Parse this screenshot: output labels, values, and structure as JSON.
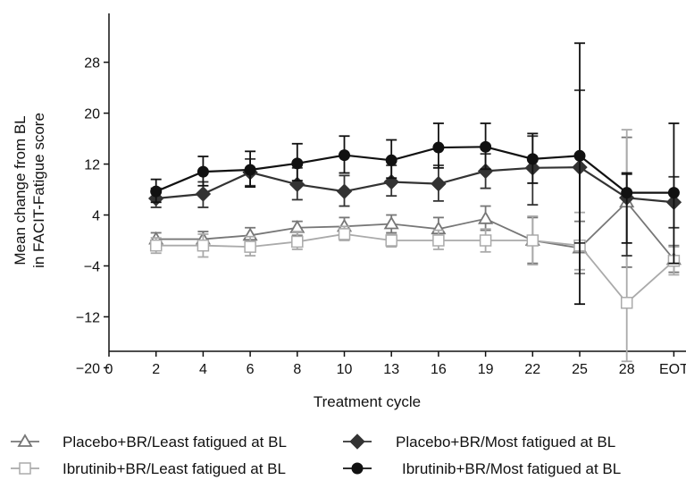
{
  "chart_data": {
    "type": "line",
    "xlabel": "Treatment cycle",
    "ylabel_lines": [
      "Mean change from BL",
      "in FACIT-Fatigue score"
    ],
    "x_ticks": [
      "0",
      "2",
      "4",
      "6",
      "8",
      "10",
      "13",
      "16",
      "19",
      "22",
      "25",
      "28",
      "EOT"
    ],
    "y_ticks": [
      28,
      20,
      12,
      4,
      -4,
      -12,
      -20
    ],
    "ylim": [
      -22,
      32
    ],
    "grid": false,
    "legend_position": "bottom",
    "series": [
      {
        "name": "Placebo+BR/Least fatigued at BL",
        "marker": "open-triangle",
        "color": "#777777",
        "x": [
          "2",
          "4",
          "6",
          "8",
          "10",
          "13",
          "16",
          "19",
          "22",
          "25",
          "28",
          "EOT"
        ],
        "values": [
          0.2,
          0.2,
          0.8,
          2.0,
          2.2,
          2.6,
          1.8,
          3.4,
          0.0,
          -1.2,
          6.0,
          -3.0
        ],
        "err_low": [
          -1.0,
          -1.2,
          -0.6,
          0.8,
          0.8,
          1.2,
          0.2,
          1.6,
          -3.6,
          -5.2,
          -4.2,
          -5.0
        ],
        "err_high": [
          1.2,
          1.4,
          2.0,
          3.0,
          3.6,
          4.0,
          3.6,
          5.4,
          3.6,
          3.0,
          16.2,
          -0.8
        ]
      },
      {
        "name": "Ibrutinib+BR/Least fatigued at BL",
        "marker": "open-square",
        "color": "#aaaaaa",
        "x": [
          "2",
          "4",
          "6",
          "8",
          "10",
          "13",
          "16",
          "19",
          "22",
          "25",
          "28",
          "EOT"
        ],
        "values": [
          -0.8,
          -0.8,
          -1.0,
          -0.2,
          1.0,
          0.0,
          0.0,
          0.0,
          0.0,
          -0.8,
          -9.8,
          -3.2
        ],
        "err_low": [
          -2.0,
          -2.6,
          -2.4,
          -1.4,
          0.0,
          -1.0,
          -1.4,
          -1.8,
          -3.8,
          -4.6,
          -19.0,
          -5.4
        ],
        "err_high": [
          0.4,
          1.0,
          0.6,
          1.4,
          2.2,
          1.0,
          1.6,
          1.8,
          3.8,
          4.4,
          17.4,
          -1.0
        ]
      },
      {
        "name": "Placebo+BR/Most fatigued at BL",
        "marker": "filled-diamond",
        "color": "#333333",
        "x": [
          "2",
          "4",
          "6",
          "8",
          "10",
          "13",
          "16",
          "19",
          "22",
          "25",
          "28",
          "EOT"
        ],
        "values": [
          6.6,
          7.3,
          10.7,
          8.8,
          7.7,
          9.2,
          8.9,
          10.9,
          11.4,
          11.5,
          6.7,
          6.0
        ],
        "err_low": [
          5.2,
          5.2,
          8.6,
          6.4,
          5.4,
          7.0,
          6.2,
          8.2,
          5.6,
          -0.4,
          -2.4,
          2.0
        ],
        "err_high": [
          8.2,
          9.2,
          12.8,
          11.4,
          10.2,
          11.8,
          11.8,
          13.6,
          16.4,
          23.6,
          10.4,
          10.0
        ]
      },
      {
        "name": "Ibrutinib+BR/Most fatigued at BL",
        "marker": "filled-circle",
        "color": "#111111",
        "x": [
          "2",
          "4",
          "6",
          "8",
          "10",
          "13",
          "16",
          "19",
          "22",
          "25",
          "28",
          "EOT"
        ],
        "values": [
          7.7,
          10.8,
          11.1,
          12.1,
          13.4,
          12.6,
          14.6,
          14.7,
          12.8,
          13.3,
          7.5,
          7.5
        ],
        "err_low": [
          6.0,
          8.6,
          8.4,
          9.4,
          10.6,
          9.8,
          11.4,
          11.2,
          9.0,
          -10.0,
          -0.4,
          -3.6
        ],
        "err_high": [
          9.6,
          13.2,
          14.0,
          15.2,
          16.4,
          15.8,
          18.4,
          18.4,
          16.8,
          31.0,
          10.6,
          18.4
        ]
      }
    ]
  }
}
